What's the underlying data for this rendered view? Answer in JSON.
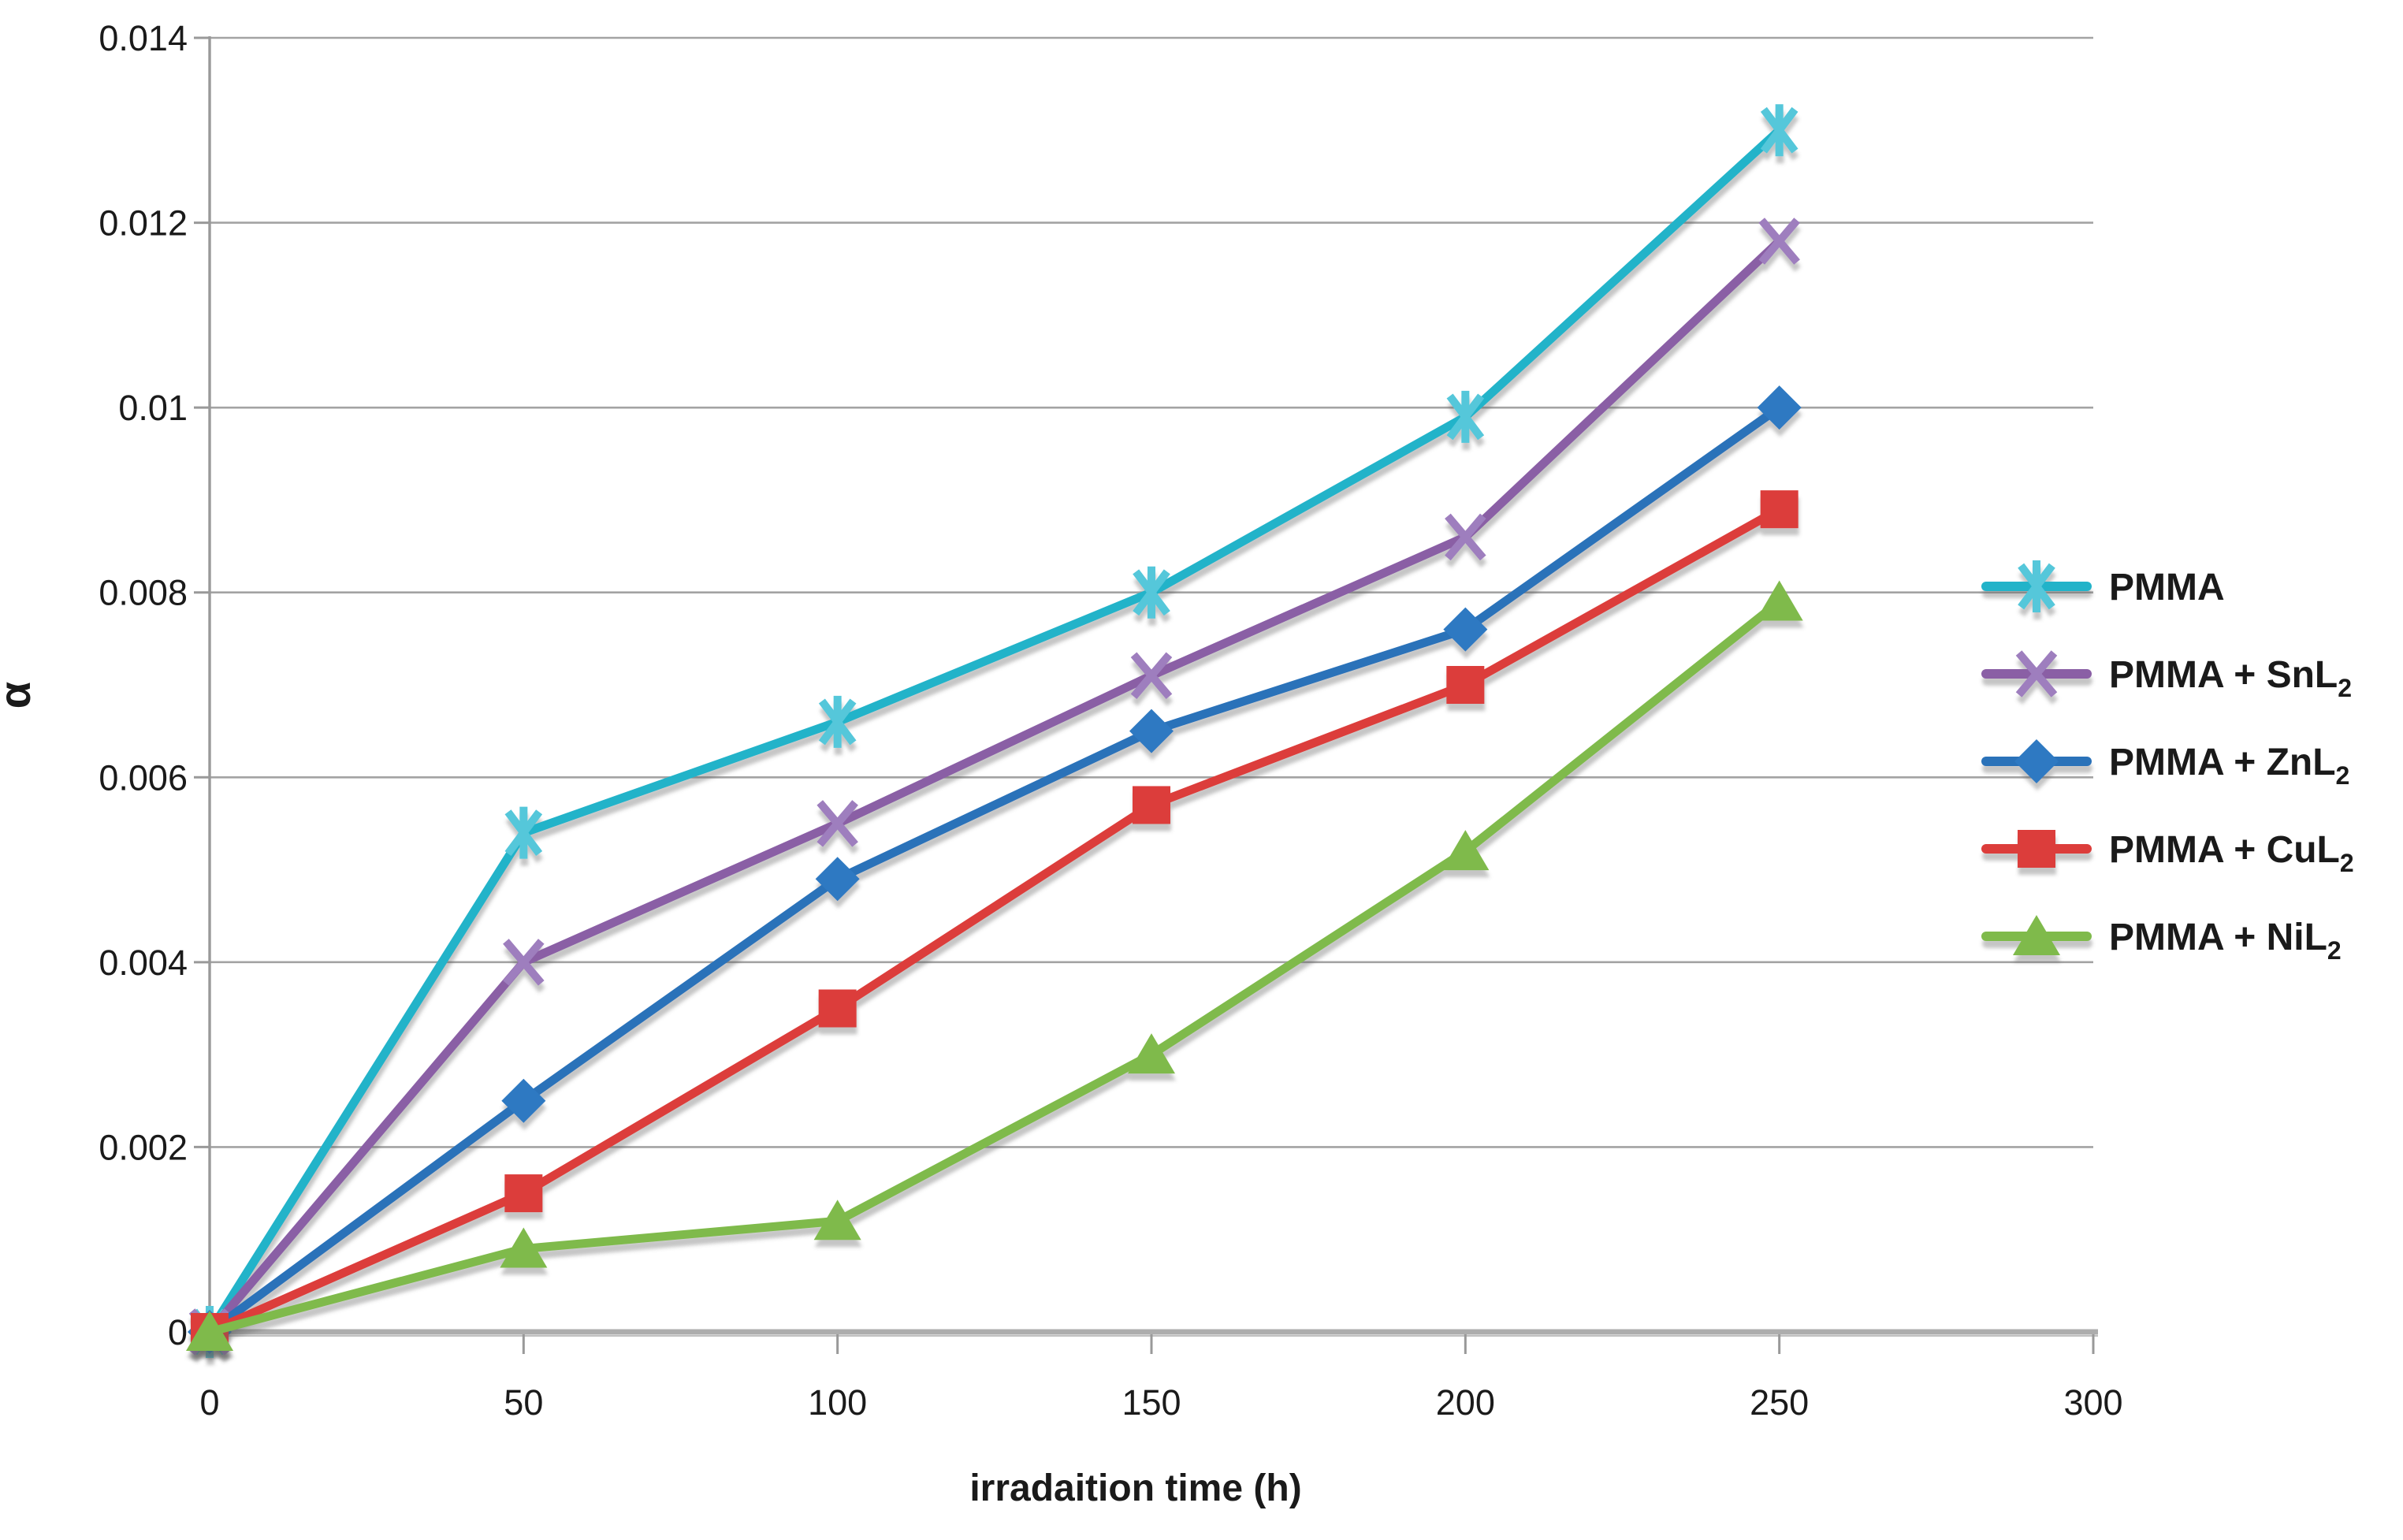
{
  "chart_data": {
    "type": "line",
    "title": "",
    "xlabel": "irradaition time (h)",
    "ylabel": "α",
    "xlim": [
      0,
      300
    ],
    "ylim": [
      0,
      0.014
    ],
    "grid": "horizontal-only",
    "legend_position": "right-middle",
    "x_ticks": [
      0,
      50,
      100,
      150,
      200,
      250,
      300
    ],
    "x_tick_labels": [
      "0",
      "50",
      "100",
      "150",
      "200",
      "250",
      "300"
    ],
    "y_ticks": [
      0,
      0.002,
      0.004,
      0.006,
      0.008,
      0.01,
      0.012,
      0.014
    ],
    "y_tick_labels": [
      "0",
      "0.002",
      "0.004",
      "0.006",
      "0.008",
      "0.01",
      "0.012",
      "0.014"
    ],
    "x": [
      0,
      50,
      100,
      150,
      200,
      250
    ],
    "series": [
      {
        "name": "PMMA",
        "legend_base": "PMMA",
        "legend_sub": "",
        "marker": "asterisk",
        "line_color": "#24B3C9",
        "marker_color": "#55C7DA",
        "values": [
          0,
          0.0054,
          0.0066,
          0.008,
          0.0099,
          0.013
        ]
      },
      {
        "name": "PMMA + SnL2",
        "legend_base": "PMMA + SnL",
        "legend_sub": "2",
        "marker": "x",
        "line_color": "#8A5FA5",
        "marker_color": "#9E7EBE",
        "values": [
          0,
          0.004,
          0.0055,
          0.0071,
          0.0086,
          0.0118
        ]
      },
      {
        "name": "PMMA + ZnL2",
        "legend_base": "PMMA + ZnL",
        "legend_sub": "2",
        "marker": "diamond",
        "line_color": "#2C72B9",
        "marker_color": "#2F79C2",
        "values": [
          0,
          0.0025,
          0.0049,
          0.0065,
          0.0076,
          0.01
        ]
      },
      {
        "name": "PMMA + CuL2",
        "legend_base": "PMMA + CuL",
        "legend_sub": "2",
        "marker": "square",
        "line_color": "#DC3E3A",
        "marker_color": "#DC3E3A",
        "values": [
          0,
          0.0015,
          0.0035,
          0.0057,
          0.007,
          0.0089
        ]
      },
      {
        "name": "PMMA + NiL2",
        "legend_base": "PMMA + NiL",
        "legend_sub": "2",
        "marker": "triangle",
        "line_color": "#7FBA4C",
        "marker_color": "#7FBA4C",
        "values": [
          0,
          0.0009,
          0.0012,
          0.003,
          0.0052,
          0.0079
        ]
      }
    ],
    "style_colors": {
      "gridline": "#A3A3A3",
      "axis": "#999999",
      "text": "#1a1a1a",
      "background": "#FFFFFF"
    }
  }
}
